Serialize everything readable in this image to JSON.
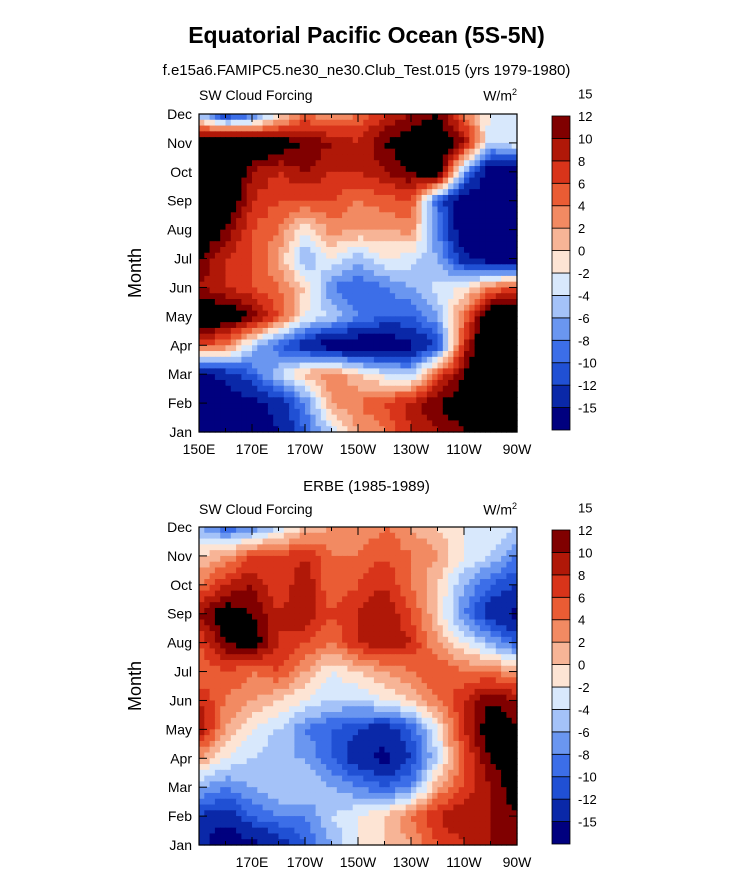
{
  "title": "Equatorial Pacific Ocean (5S-5N)",
  "subtitle": "f.e15a6.FAMIPC5.ne30_ne30.Club_Test.015 (yrs 1979-1980)",
  "colors": {
    "scale": [
      "#00007f",
      "#0a28a8",
      "#2050d4",
      "#3c6ee8",
      "#6a96f0",
      "#a4c2f8",
      "#d8e8fc",
      "#fde4d4",
      "#f7b496",
      "#f28a62",
      "#ea5c34",
      "#d8341a",
      "#b01808",
      "#800000"
    ]
  },
  "chart_data": [
    {
      "type": "heatmap",
      "title": "",
      "left_label": "SW Cloud Forcing",
      "right_label": "W/m",
      "right_label_sup": "2",
      "xlabel": "",
      "ylabel": "Month",
      "x_ticks": [
        "150E",
        "170E",
        "170W",
        "150W",
        "130W",
        "110W",
        "90W"
      ],
      "x_tick_values": [
        150,
        170,
        190,
        210,
        230,
        250,
        270
      ],
      "xlim": [
        150,
        270
      ],
      "y_ticks": [
        "Jan",
        "Feb",
        "Mar",
        "Apr",
        "May",
        "Jun",
        "Jul",
        "Aug",
        "Sep",
        "Oct",
        "Nov",
        "Dec"
      ],
      "colorbar_levels": [
        "-15",
        "-12",
        "-10",
        "-8",
        "-6",
        "-4",
        "-2",
        "0",
        "2",
        "4",
        "6",
        "8",
        "10",
        "12",
        "15"
      ],
      "grid_lon": [
        150,
        160,
        170,
        180,
        190,
        200,
        210,
        220,
        230,
        240,
        250,
        260,
        270
      ],
      "values": [
        [
          -18,
          -18,
          -17,
          -15,
          -10,
          -4,
          2,
          4,
          8,
          10,
          12,
          16,
          16
        ],
        [
          -18,
          -17,
          -16,
          -14,
          -8,
          2,
          4,
          6,
          9,
          12,
          14,
          17,
          18
        ],
        [
          -16,
          -14,
          -10,
          -4,
          1,
          4,
          0,
          -3,
          -5,
          6,
          12,
          18,
          18
        ],
        [
          6,
          4,
          -4,
          -10,
          -14,
          -18,
          -18,
          -18,
          -16,
          -12,
          8,
          18,
          18
        ],
        [
          16,
          15,
          12,
          6,
          -2,
          -4,
          -8,
          -10,
          -10,
          -6,
          4,
          16,
          16
        ],
        [
          10,
          8,
          6,
          4,
          0,
          -8,
          -10,
          -8,
          -6,
          -3,
          -2,
          4,
          6
        ],
        [
          12,
          8,
          6,
          2,
          -6,
          -2,
          -5,
          -2,
          -3,
          -6,
          -14,
          -18,
          -18
        ],
        [
          16,
          12,
          6,
          4,
          -2,
          3,
          2,
          2,
          3,
          -8,
          -18,
          -18,
          -18
        ],
        [
          18,
          16,
          8,
          6,
          6,
          6,
          4,
          5,
          6,
          -10,
          -18,
          -18,
          -18
        ],
        [
          18,
          18,
          10,
          8,
          10,
          8,
          8,
          10,
          12,
          16,
          -6,
          -18,
          -18
        ],
        [
          16,
          18,
          16,
          14,
          12,
          10,
          8,
          12,
          14,
          16,
          10,
          -4,
          -2
        ],
        [
          -6,
          -14,
          -10,
          -2,
          4,
          2,
          4,
          8,
          10,
          12,
          4,
          -2,
          -4
        ]
      ]
    },
    {
      "type": "heatmap",
      "title": "ERBE (1985-1989)",
      "left_label": "SW Cloud Forcing",
      "right_label": "W/m",
      "right_label_sup": "2",
      "xlabel": "",
      "ylabel": "Month",
      "x_ticks": [
        "170E",
        "170W",
        "150W",
        "130W",
        "110W",
        "90W"
      ],
      "x_tick_values": [
        170,
        190,
        210,
        230,
        250,
        270
      ],
      "xlim": [
        150,
        270
      ],
      "y_ticks": [
        "Jan",
        "Feb",
        "Mar",
        "Apr",
        "May",
        "Jun",
        "Jul",
        "Aug",
        "Sep",
        "Oct",
        "Nov",
        "Dec"
      ],
      "colorbar_levels": [
        "-15",
        "-12",
        "-10",
        "-8",
        "-6",
        "-4",
        "-2",
        "0",
        "2",
        "4",
        "6",
        "8",
        "10",
        "12",
        "15"
      ],
      "grid_lon": [
        150,
        160,
        170,
        180,
        190,
        200,
        210,
        220,
        230,
        240,
        250,
        260,
        270
      ],
      "values": [
        [
          -14,
          -18,
          -16,
          -14,
          -10,
          -6,
          -2,
          0,
          2,
          6,
          8,
          10,
          12
        ],
        [
          -12,
          -14,
          -10,
          -8,
          -8,
          -4,
          -2,
          0,
          4,
          8,
          10,
          10,
          12
        ],
        [
          -6,
          -8,
          -6,
          -4,
          -4,
          -6,
          -8,
          -10,
          -8,
          2,
          6,
          10,
          14
        ],
        [
          2,
          -2,
          -4,
          -6,
          -6,
          -10,
          -14,
          -16,
          -12,
          -4,
          6,
          12,
          14
        ],
        [
          10,
          2,
          -2,
          -4,
          -8,
          -10,
          -12,
          -14,
          -10,
          -2,
          8,
          14,
          12
        ],
        [
          8,
          4,
          2,
          0,
          -2,
          -4,
          -4,
          -2,
          0,
          4,
          8,
          12,
          10
        ],
        [
          4,
          6,
          4,
          6,
          2,
          -2,
          0,
          2,
          4,
          6,
          4,
          4,
          2
        ],
        [
          6,
          12,
          14,
          8,
          6,
          4,
          8,
          10,
          8,
          2,
          -2,
          -6,
          -10
        ],
        [
          10,
          14,
          12,
          8,
          10,
          6,
          8,
          10,
          6,
          0,
          -8,
          -14,
          -16
        ],
        [
          4,
          8,
          10,
          6,
          10,
          4,
          6,
          8,
          4,
          0,
          -6,
          -10,
          -12
        ],
        [
          0,
          2,
          6,
          6,
          8,
          4,
          4,
          6,
          4,
          2,
          -2,
          -4,
          -8
        ],
        [
          -6,
          -10,
          -8,
          -4,
          0,
          2,
          2,
          4,
          2,
          0,
          -2,
          -2,
          -4
        ]
      ]
    }
  ]
}
